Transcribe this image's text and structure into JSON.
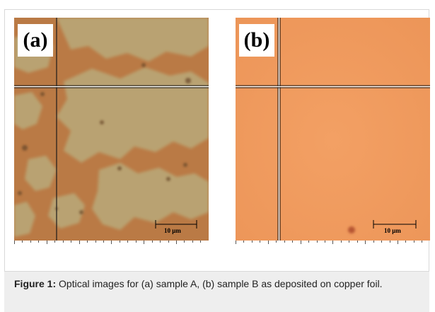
{
  "figure": {
    "panels": [
      {
        "label": "(a)",
        "scale_bar": "10 µm"
      },
      {
        "label": "(b)",
        "scale_bar": "10 µm"
      }
    ],
    "caption": {
      "label": "Figure 1:",
      "text": " Optical images for (a) sample A, (b) sample B as deposited on copper foil."
    }
  }
}
